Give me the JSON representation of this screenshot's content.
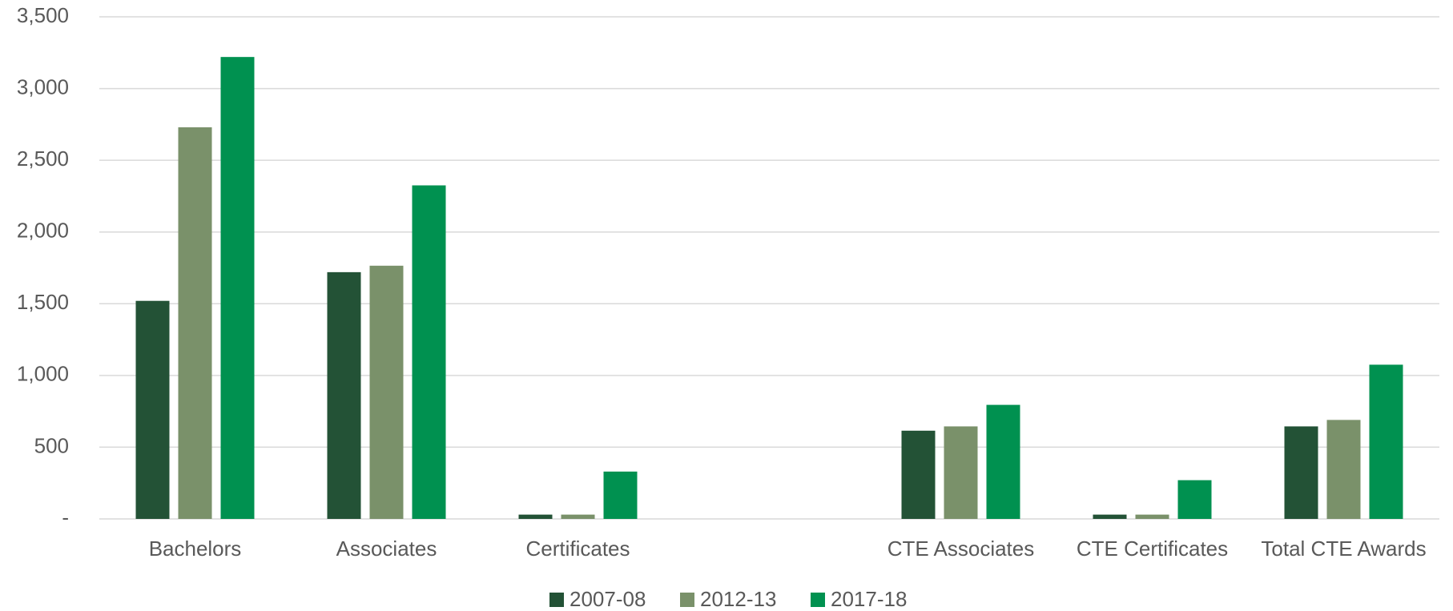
{
  "chart_data": {
    "type": "bar",
    "categories": [
      "Bachelors",
      "Associates",
      "Certificates",
      null,
      "CTE Associates",
      "CTE Certificates",
      "Total CTE Awards"
    ],
    "series": [
      {
        "name": "2007-08",
        "color": "#235236",
        "values": [
          1520,
          1720,
          30,
          null,
          615,
          30,
          645
        ]
      },
      {
        "name": "2012-13",
        "color": "#7a916a",
        "values": [
          2730,
          1765,
          30,
          null,
          645,
          30,
          690
        ]
      },
      {
        "name": "2017-18",
        "color": "#009150",
        "values": [
          3220,
          2325,
          330,
          null,
          795,
          270,
          1075
        ]
      }
    ],
    "ylim": [
      0,
      3500
    ],
    "yticks": [
      {
        "value": 0,
        "label": "-"
      },
      {
        "value": 500,
        "label": "500"
      },
      {
        "value": 1000,
        "label": "1,000"
      },
      {
        "value": 1500,
        "label": "1,500"
      },
      {
        "value": 2000,
        "label": "2,000"
      },
      {
        "value": 2500,
        "label": "2,500"
      },
      {
        "value": 3000,
        "label": "3,000"
      },
      {
        "value": 3500,
        "label": "3,500"
      }
    ],
    "grid": true,
    "legend": "bottom"
  }
}
